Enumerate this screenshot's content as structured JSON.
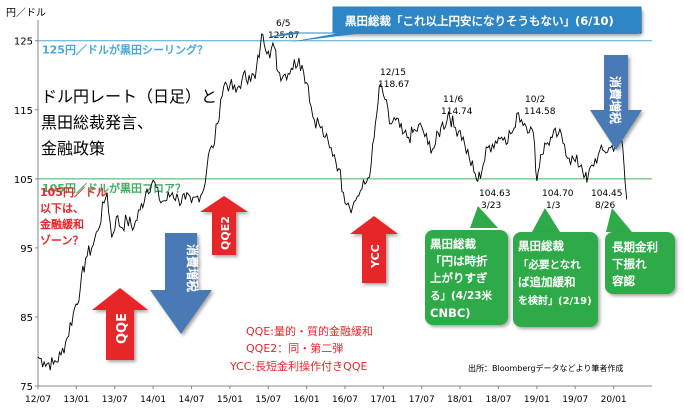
{
  "chart_data": {
    "type": "line",
    "title": "ドル円レート（日足）と黒田総裁発言、金融政策",
    "title_lines": [
      "ドル円レート（日足）と",
      "黒田総裁発言、",
      "金融政策"
    ],
    "ylabel": "円／ドル",
    "ylim": [
      75,
      128
    ],
    "yticks": [
      75,
      85,
      95,
      105,
      115,
      125
    ],
    "xlim": [
      2012.5,
      2020.5
    ],
    "xticks": [
      {
        "v": 2012.5,
        "label": "12/07"
      },
      {
        "v": 2013.0,
        "label": "13/01"
      },
      {
        "v": 2013.5,
        "label": "13/07"
      },
      {
        "v": 2014.0,
        "label": "14/01"
      },
      {
        "v": 2014.5,
        "label": "14/07"
      },
      {
        "v": 2015.0,
        "label": "15/01"
      },
      {
        "v": 2015.5,
        "label": "15/07"
      },
      {
        "v": 2016.0,
        "label": "16/01"
      },
      {
        "v": 2016.5,
        "label": "16/07"
      },
      {
        "v": 2017.0,
        "label": "17/01"
      },
      {
        "v": 2017.5,
        "label": "17/07"
      },
      {
        "v": 2018.0,
        "label": "18/01"
      },
      {
        "v": 2018.5,
        "label": "18/07"
      },
      {
        "v": 2019.0,
        "label": "19/01"
      },
      {
        "v": 2019.5,
        "label": "19/07"
      },
      {
        "v": 2020.0,
        "label": "20/01"
      }
    ],
    "series": [
      {
        "color": "#000000",
        "points": [
          [
            2012.5,
            79.2
          ],
          [
            2012.58,
            78.5
          ],
          [
            2012.7,
            78.2
          ],
          [
            2012.8,
            79.5
          ],
          [
            2012.88,
            82.0
          ],
          [
            2012.96,
            85.5
          ],
          [
            2013.05,
            89.0
          ],
          [
            2013.12,
            93.5
          ],
          [
            2013.2,
            95.0
          ],
          [
            2013.28,
            97.5
          ],
          [
            2013.36,
            101.5
          ],
          [
            2013.4,
            103.0
          ],
          [
            2013.46,
            96.5
          ],
          [
            2013.52,
            99.5
          ],
          [
            2013.58,
            98.0
          ],
          [
            2013.66,
            99.0
          ],
          [
            2013.75,
            98.0
          ],
          [
            2013.83,
            100.5
          ],
          [
            2013.92,
            103.5
          ],
          [
            2014.0,
            104.8
          ],
          [
            2014.08,
            102.0
          ],
          [
            2014.16,
            101.8
          ],
          [
            2014.25,
            103.0
          ],
          [
            2014.33,
            102.0
          ],
          [
            2014.42,
            102.0
          ],
          [
            2014.5,
            101.5
          ],
          [
            2014.58,
            102.5
          ],
          [
            2014.66,
            103.5
          ],
          [
            2014.72,
            108.5
          ],
          [
            2014.78,
            109.5
          ],
          [
            2014.84,
            113.0
          ],
          [
            2014.88,
            116.5
          ],
          [
            2014.94,
            119.0
          ],
          [
            2015.0,
            118.5
          ],
          [
            2015.08,
            117.5
          ],
          [
            2015.16,
            119.5
          ],
          [
            2015.25,
            120.0
          ],
          [
            2015.33,
            119.5
          ],
          [
            2015.4,
            124.5
          ],
          [
            2015.43,
            125.87
          ],
          [
            2015.5,
            123.5
          ],
          [
            2015.58,
            124.0
          ],
          [
            2015.63,
            120.5
          ],
          [
            2015.7,
            120.0
          ],
          [
            2015.8,
            121.0
          ],
          [
            2015.9,
            122.5
          ],
          [
            2015.96,
            120.5
          ],
          [
            2016.02,
            118.5
          ],
          [
            2016.08,
            114.0
          ],
          [
            2016.16,
            113.0
          ],
          [
            2016.24,
            111.0
          ],
          [
            2016.3,
            109.5
          ],
          [
            2016.36,
            108.5
          ],
          [
            2016.42,
            106.5
          ],
          [
            2016.48,
            103.0
          ],
          [
            2016.54,
            101.5
          ],
          [
            2016.6,
            101.0
          ],
          [
            2016.66,
            102.5
          ],
          [
            2016.72,
            103.5
          ],
          [
            2016.78,
            104.5
          ],
          [
            2016.84,
            107.0
          ],
          [
            2016.88,
            111.0
          ],
          [
            2016.93,
            116.0
          ],
          [
            2016.96,
            118.67
          ],
          [
            2017.02,
            116.5
          ],
          [
            2017.08,
            113.0
          ],
          [
            2017.16,
            113.5
          ],
          [
            2017.25,
            111.5
          ],
          [
            2017.33,
            111.0
          ],
          [
            2017.42,
            112.0
          ],
          [
            2017.5,
            112.5
          ],
          [
            2017.58,
            110.0
          ],
          [
            2017.66,
            109.5
          ],
          [
            2017.75,
            112.5
          ],
          [
            2017.83,
            113.5
          ],
          [
            2017.85,
            114.74
          ],
          [
            2017.92,
            112.5
          ],
          [
            2018.0,
            112.0
          ],
          [
            2018.06,
            110.0
          ],
          [
            2018.12,
            108.0
          ],
          [
            2018.18,
            106.0
          ],
          [
            2018.23,
            104.63
          ],
          [
            2018.3,
            107.0
          ],
          [
            2018.36,
            109.5
          ],
          [
            2018.42,
            110.0
          ],
          [
            2018.5,
            111.0
          ],
          [
            2018.58,
            111.0
          ],
          [
            2018.66,
            111.5
          ],
          [
            2018.72,
            112.5
          ],
          [
            2018.76,
            114.58
          ],
          [
            2018.84,
            113.0
          ],
          [
            2018.92,
            112.5
          ],
          [
            2018.97,
            110.0
          ],
          [
            2019.0,
            104.7
          ],
          [
            2019.05,
            108.5
          ],
          [
            2019.12,
            110.0
          ],
          [
            2019.2,
            111.0
          ],
          [
            2019.28,
            111.5
          ],
          [
            2019.36,
            110.0
          ],
          [
            2019.42,
            108.0
          ],
          [
            2019.5,
            107.5
          ],
          [
            2019.58,
            107.0
          ],
          [
            2019.63,
            105.5
          ],
          [
            2019.65,
            104.45
          ],
          [
            2019.72,
            107.0
          ],
          [
            2019.8,
            108.5
          ],
          [
            2019.88,
            109.0
          ],
          [
            2019.96,
            109.5
          ],
          [
            2020.02,
            110.0
          ],
          [
            2020.08,
            111.5
          ],
          [
            2020.12,
            109.5
          ],
          [
            2020.15,
            104.5
          ],
          [
            2020.17,
            102.0
          ]
        ]
      }
    ],
    "reference_lines": [
      {
        "y": 125,
        "color": "#4aa8d8",
        "label": "125円／ドルが黒田シーリング？"
      },
      {
        "y": 105,
        "color": "#3fb060",
        "label": "105円／ドルが黒田フロア？"
      }
    ],
    "point_labels": [
      {
        "date": "6/5",
        "value": "125.87"
      },
      {
        "date": "12/15",
        "value": "118.67"
      },
      {
        "date": "11/6",
        "value": "114.74"
      },
      {
        "date": "10/2",
        "value": "114.58"
      },
      {
        "value": "104.63",
        "date": "3/23"
      },
      {
        "value": "104.70",
        "date": "1/3"
      },
      {
        "value": "104.45",
        "date": "8/26"
      }
    ],
    "top_callout": "黒田総裁「これ以上円安になりそうもない」(6/10)",
    "callouts": [
      {
        "lines": [
          "黒田総裁",
          "「円は時折",
          "上がりすぎ",
          "る」(4/23米",
          "CNBC)"
        ]
      },
      {
        "lines": [
          "黒田総裁",
          "「必要となれ",
          "ば追加緩和",
          "を検討」(2/19)"
        ]
      },
      {
        "lines": [
          "長期金利",
          "下振れ",
          "容認"
        ]
      }
    ],
    "red_note": [
      "105円／ドル",
      "以下は、",
      "金融緩和",
      "ゾーン？"
    ],
    "arrows": [
      {
        "label": "QQE",
        "direction": "up",
        "color": "#e8262b"
      },
      {
        "label": "消費増税",
        "direction": "down",
        "color": "#4a7ab5"
      },
      {
        "label": "QQE2",
        "direction": "up",
        "color": "#e8262b"
      },
      {
        "label": "YCC",
        "direction": "up",
        "color": "#e8262b"
      },
      {
        "label": "消費増税",
        "direction": "down",
        "color": "#4a7ab5"
      }
    ],
    "legend_notes": [
      "QQE:量的・質的金融緩和",
      "QQE2：同・第二弾",
      "YCC:長短金利操作付きQQE"
    ],
    "source": "出所：Bloombergデータなどより筆者作成",
    "grid": false,
    "colors": {
      "callout_green": "#2eaa4a",
      "callout_blue": "#2e86c6",
      "arrow_red": "#e8262b",
      "arrow_blue": "#4a7ab5",
      "ceiling_line": "#4aa8d8",
      "floor_line": "#3fb060"
    }
  }
}
